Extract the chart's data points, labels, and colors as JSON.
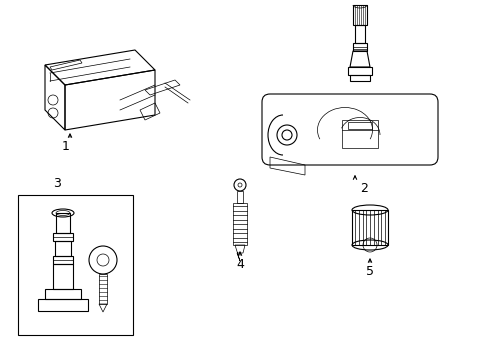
{
  "background_color": "#ffffff",
  "line_color": "#000000",
  "text_color": "#000000",
  "fig_width": 4.89,
  "fig_height": 3.6,
  "dpi": 100,
  "lw_thin": 0.5,
  "lw_med": 0.8,
  "lw_thick": 1.0
}
